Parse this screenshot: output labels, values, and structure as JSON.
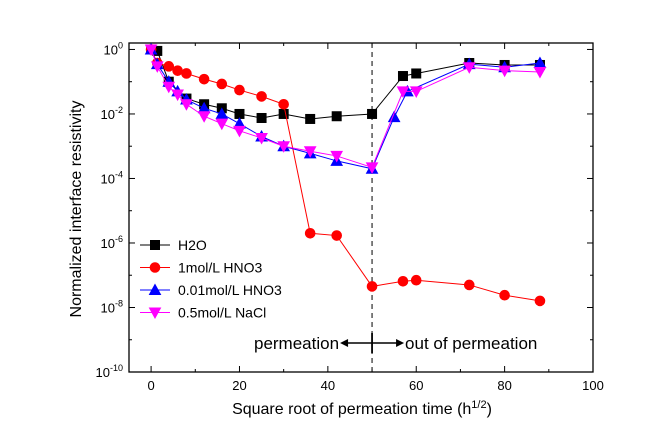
{
  "chart_data": {
    "type": "line",
    "title": "",
    "xlabel": "Square root of permeation time (h",
    "xlabel_sup": "1/2",
    "xlabel_end": ")",
    "ylabel": "Normalized interface resistivity",
    "xlim": [
      -5,
      100
    ],
    "ylim_log10": [
      -10,
      0.2
    ],
    "y_scale": "log",
    "x_ticks": [
      0,
      20,
      40,
      60,
      80,
      100
    ],
    "y_tick_exponents": [
      0,
      -2,
      -4,
      -6,
      -8,
      -10
    ],
    "y_tick_base": "10",
    "legend_position": "lower-left",
    "series": [
      {
        "name": "H2O",
        "color": "#000000",
        "marker": "square",
        "x": [
          0,
          1.4,
          4,
          8,
          12,
          16,
          20,
          25,
          30,
          36,
          42,
          50,
          57,
          60,
          72,
          80,
          88
        ],
        "y": [
          1.0,
          0.9,
          0.1,
          0.03,
          0.02,
          0.015,
          0.01,
          0.0075,
          0.01,
          0.007,
          0.0085,
          0.01,
          0.15,
          0.18,
          0.38,
          0.33,
          0.33
        ]
      },
      {
        "name": "1mol/L HNO3",
        "color": "#ff0000",
        "marker": "circle",
        "x": [
          0,
          1.4,
          4,
          6,
          8,
          12,
          16,
          20,
          25,
          30,
          36,
          42,
          50,
          57,
          60,
          72,
          80,
          88
        ],
        "y": [
          1.0,
          0.38,
          0.3,
          0.22,
          0.18,
          0.12,
          0.085,
          0.055,
          0.035,
          0.02,
          2e-06,
          1.7e-06,
          4.5e-08,
          6.5e-08,
          7e-08,
          5e-08,
          2.4e-08,
          1.6e-08
        ]
      },
      {
        "name": "0.01mol/L HNO3",
        "color": "#0000ff",
        "marker": "triangle-up",
        "x": [
          0,
          1.4,
          4,
          6,
          8,
          12,
          16,
          20,
          25,
          30,
          36,
          42,
          50,
          55,
          58,
          72,
          80,
          88
        ],
        "y": [
          1.0,
          0.35,
          0.1,
          0.05,
          0.028,
          0.015,
          0.01,
          0.005,
          0.002,
          0.001,
          0.0006,
          0.00035,
          0.0002,
          0.008,
          0.05,
          0.35,
          0.28,
          0.38
        ]
      },
      {
        "name": "0.5mol/L NaCl",
        "color": "#ff00ff",
        "marker": "triangle-down",
        "x": [
          0,
          1.4,
          4,
          6,
          8,
          12,
          16,
          20,
          25,
          30,
          36,
          42,
          50,
          57,
          60,
          72,
          80,
          88
        ],
        "y": [
          1.0,
          0.3,
          0.07,
          0.04,
          0.02,
          0.0085,
          0.005,
          0.003,
          0.0018,
          0.001,
          0.0007,
          0.0005,
          0.00022,
          0.05,
          0.05,
          0.28,
          0.22,
          0.2
        ]
      }
    ],
    "annotations": {
      "divider_x": 50,
      "left_label": "permeation",
      "right_label": "out of permeation"
    }
  }
}
